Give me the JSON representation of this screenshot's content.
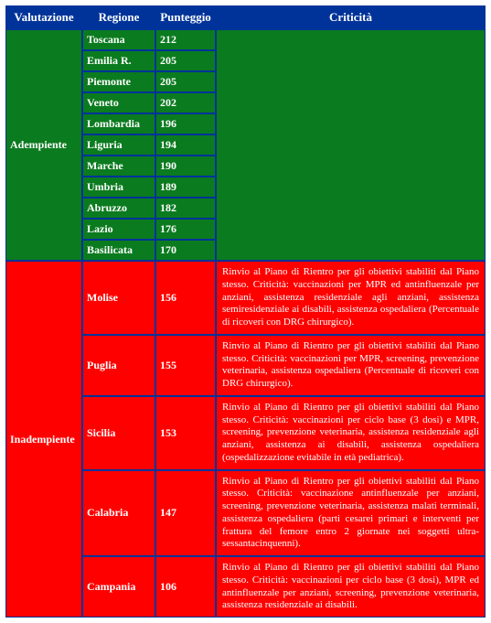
{
  "headers": {
    "valutazione": "Valutazione",
    "regione": "Regione",
    "punteggio": "Punteggio",
    "criticita": "Criticità"
  },
  "colors": {
    "header_bg": "#003399",
    "border": "#003399",
    "green": "#0b7b1f",
    "red": "#ff0000",
    "text": "#ffffff"
  },
  "groups": [
    {
      "valutazione": "Adempiente",
      "bg": "green",
      "criticita": "",
      "rows": [
        {
          "regione": "Toscana",
          "punteggio": "212"
        },
        {
          "regione": "Emilia R.",
          "punteggio": "205"
        },
        {
          "regione": "Piemonte",
          "punteggio": "205"
        },
        {
          "regione": "Veneto",
          "punteggio": "202"
        },
        {
          "regione": "Lombardia",
          "punteggio": "196"
        },
        {
          "regione": "Liguria",
          "punteggio": "194"
        },
        {
          "regione": "Marche",
          "punteggio": "190"
        },
        {
          "regione": "Umbria",
          "punteggio": "189"
        },
        {
          "regione": "Abruzzo",
          "punteggio": "182"
        },
        {
          "regione": "Lazio",
          "punteggio": "176"
        },
        {
          "regione": "Basilicata",
          "punteggio": "170"
        }
      ]
    },
    {
      "valutazione": "Inadempiente",
      "bg": "red",
      "rows": [
        {
          "regione": "Molise",
          "punteggio": "156",
          "criticita": "Rinvio al Piano di Rientro per gli obiettivi stabiliti dal Piano stesso.\nCriticità: vaccinazioni per MPR ed antinfluenzale per anziani, assistenza residenziale agli anziani, assistenza semiresidenziale ai disabili, assistenza ospedaliera (Percentuale di ricoveri con DRG chirurgico)."
        },
        {
          "regione": "Puglia",
          "punteggio": "155",
          "criticita": "Rinvio al Piano di Rientro per gli obiettivi stabiliti dal Piano stesso.\nCriticità: vaccinazioni per MPR, screening, prevenzione veterinaria, assistenza ospedaliera (Percentuale di ricoveri con DRG chirurgico)."
        },
        {
          "regione": "Sicilia",
          "punteggio": "153",
          "criticita": "Rinvio al Piano di Rientro per gli obiettivi stabiliti dal Piano stesso.\nCriticità: vaccinazioni per ciclo base (3 dosi) e MPR, screening, prevenzione veterinaria, assistenza residenziale agli anziani, assistenza ai disabili, assistenza ospedaliera (ospedalizzazione evitabile in età pediatrica)."
        },
        {
          "regione": "Calabria",
          "punteggio": "147",
          "criticita": "Rinvio al Piano di Rientro per gli obiettivi stabiliti dal Piano stesso.\nCriticità: vaccinazione antinfluenzale per anziani, screening, prevenzione veterinaria, assistenza malati terminali, assistenza ospedaliera (parti cesarei primari e interventi per frattura del femore entro 2 giornate nei soggetti ultra-sessantacinquenni)."
        },
        {
          "regione": "Campania",
          "punteggio": "106",
          "criticita": "Rinvio al Piano di Rientro per gli obiettivi stabiliti dal Piano stesso.\nCriticità: vaccinazioni per ciclo base (3 dosi), MPR ed antinfluenzale per anziani, screening, prevenzione veterinaria, assistenza residenziale ai disabili."
        }
      ]
    }
  ]
}
